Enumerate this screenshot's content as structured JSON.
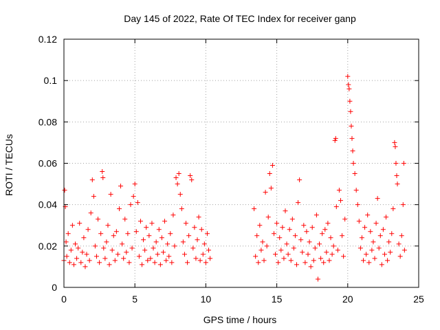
{
  "chart_data": {
    "type": "scatter",
    "title": "Day 145 of 2022, Rate Of TEC Index for receiver ganp",
    "xlabel": "GPS time / hours",
    "ylabel": "ROTI / TECUs",
    "xlim": [
      0,
      25
    ],
    "ylim": [
      0,
      0.12
    ],
    "grid": true,
    "marker": "+",
    "x_ticks": [
      0,
      5,
      10,
      15,
      20,
      25
    ],
    "x_tick_labels": [
      "0",
      "5",
      "10",
      "15",
      "20",
      "25"
    ],
    "y_ticks": [
      0,
      0.02,
      0.04,
      0.06,
      0.08,
      0.1,
      0.12
    ],
    "y_tick_labels": [
      "0",
      "0.02",
      "0.04",
      "0.06",
      "0.08",
      "0.1",
      "0.12"
    ],
    "series": [
      {
        "name": "ROTI",
        "color": "#ff0000",
        "points": [
          [
            0.0,
            0.013
          ],
          [
            0.05,
            0.047
          ],
          [
            0.1,
            0.039
          ],
          [
            0.15,
            0.022
          ],
          [
            0.2,
            0.015
          ],
          [
            0.3,
            0.026
          ],
          [
            0.4,
            0.012
          ],
          [
            0.5,
            0.018
          ],
          [
            0.6,
            0.03
          ],
          [
            0.7,
            0.011
          ],
          [
            0.8,
            0.021
          ],
          [
            0.9,
            0.014
          ],
          [
            1.0,
            0.019
          ],
          [
            1.1,
            0.031
          ],
          [
            1.2,
            0.012
          ],
          [
            1.3,
            0.017
          ],
          [
            1.4,
            0.024
          ],
          [
            1.5,
            0.01
          ],
          [
            1.6,
            0.016
          ],
          [
            1.7,
            0.028
          ],
          [
            1.8,
            0.013
          ],
          [
            1.9,
            0.036
          ],
          [
            2.0,
            0.052
          ],
          [
            2.1,
            0.044
          ],
          [
            2.2,
            0.02
          ],
          [
            2.3,
            0.015
          ],
          [
            2.4,
            0.033
          ],
          [
            2.5,
            0.012
          ],
          [
            2.6,
            0.026
          ],
          [
            2.7,
            0.056
          ],
          [
            2.75,
            0.053
          ],
          [
            2.8,
            0.019
          ],
          [
            2.9,
            0.014
          ],
          [
            3.0,
            0.022
          ],
          [
            3.1,
            0.03
          ],
          [
            3.2,
            0.011
          ],
          [
            3.3,
            0.045
          ],
          [
            3.4,
            0.018
          ],
          [
            3.5,
            0.025
          ],
          [
            3.6,
            0.013
          ],
          [
            3.7,
            0.027
          ],
          [
            3.8,
            0.016
          ],
          [
            3.9,
            0.038
          ],
          [
            4.0,
            0.049
          ],
          [
            4.1,
            0.021
          ],
          [
            4.2,
            0.014
          ],
          [
            4.3,
            0.033
          ],
          [
            4.4,
            0.017
          ],
          [
            4.5,
            0.026
          ],
          [
            4.6,
            0.012
          ],
          [
            4.7,
            0.04
          ],
          [
            4.8,
            0.019
          ],
          [
            4.9,
            0.044
          ],
          [
            5.0,
            0.05
          ],
          [
            5.1,
            0.027
          ],
          [
            5.2,
            0.041
          ],
          [
            5.3,
            0.015
          ],
          [
            5.4,
            0.032
          ],
          [
            5.5,
            0.011
          ],
          [
            5.6,
            0.023
          ],
          [
            5.7,
            0.018
          ],
          [
            5.8,
            0.029
          ],
          [
            5.9,
            0.013
          ],
          [
            6.0,
            0.025
          ],
          [
            6.1,
            0.014
          ],
          [
            6.2,
            0.031
          ],
          [
            6.3,
            0.019
          ],
          [
            6.4,
            0.012
          ],
          [
            6.5,
            0.022
          ],
          [
            6.6,
            0.016
          ],
          [
            6.7,
            0.028
          ],
          [
            6.8,
            0.011
          ],
          [
            6.9,
            0.024
          ],
          [
            7.0,
            0.017
          ],
          [
            7.1,
            0.032
          ],
          [
            7.2,
            0.013
          ],
          [
            7.3,
            0.021
          ],
          [
            7.4,
            0.015
          ],
          [
            7.5,
            0.026
          ],
          [
            7.6,
            0.012
          ],
          [
            7.7,
            0.035
          ],
          [
            7.8,
            0.02
          ],
          [
            7.9,
            0.053
          ],
          [
            8.0,
            0.05
          ],
          [
            8.1,
            0.055
          ],
          [
            8.2,
            0.045
          ],
          [
            8.3,
            0.038
          ],
          [
            8.4,
            0.022
          ],
          [
            8.5,
            0.016
          ],
          [
            8.6,
            0.031
          ],
          [
            8.7,
            0.012
          ],
          [
            8.8,
            0.025
          ],
          [
            8.9,
            0.054
          ],
          [
            9.0,
            0.052
          ],
          [
            9.1,
            0.019
          ],
          [
            9.2,
            0.029
          ],
          [
            9.3,
            0.014
          ],
          [
            9.4,
            0.023
          ],
          [
            9.5,
            0.034
          ],
          [
            9.6,
            0.013
          ],
          [
            9.7,
            0.028
          ],
          [
            9.8,
            0.016
          ],
          [
            9.9,
            0.021
          ],
          [
            10.0,
            0.012
          ],
          [
            10.1,
            0.026
          ],
          [
            10.2,
            0.018
          ],
          [
            10.3,
            0.014
          ],
          [
            13.4,
            0.038
          ],
          [
            13.5,
            0.015
          ],
          [
            13.6,
            0.025
          ],
          [
            13.7,
            0.012
          ],
          [
            13.8,
            0.03
          ],
          [
            13.9,
            0.018
          ],
          [
            14.0,
            0.022
          ],
          [
            14.1,
            0.013
          ],
          [
            14.2,
            0.046
          ],
          [
            14.3,
            0.02
          ],
          [
            14.4,
            0.034
          ],
          [
            14.5,
            0.055
          ],
          [
            14.6,
            0.048
          ],
          [
            14.7,
            0.059
          ],
          [
            14.8,
            0.026
          ],
          [
            14.9,
            0.016
          ],
          [
            15.0,
            0.031
          ],
          [
            15.1,
            0.012
          ],
          [
            15.2,
            0.024
          ],
          [
            15.3,
            0.018
          ],
          [
            15.4,
            0.029
          ],
          [
            15.5,
            0.014
          ],
          [
            15.6,
            0.037
          ],
          [
            15.7,
            0.021
          ],
          [
            15.8,
            0.016
          ],
          [
            15.9,
            0.028
          ],
          [
            16.0,
            0.013
          ],
          [
            16.1,
            0.033
          ],
          [
            16.2,
            0.019
          ],
          [
            16.3,
            0.025
          ],
          [
            16.4,
            0.011
          ],
          [
            16.5,
            0.041
          ],
          [
            16.6,
            0.052
          ],
          [
            16.7,
            0.023
          ],
          [
            16.8,
            0.017
          ],
          [
            16.9,
            0.03
          ],
          [
            17.0,
            0.012
          ],
          [
            17.1,
            0.027
          ],
          [
            17.2,
            0.016
          ],
          [
            17.3,
            0.022
          ],
          [
            17.4,
            0.01
          ],
          [
            17.5,
            0.029
          ],
          [
            17.6,
            0.013
          ],
          [
            17.7,
            0.019
          ],
          [
            17.8,
            0.035
          ],
          [
            17.9,
            0.004
          ],
          [
            18.0,
            0.021
          ],
          [
            18.1,
            0.014
          ],
          [
            18.2,
            0.026
          ],
          [
            18.3,
            0.012
          ],
          [
            18.4,
            0.028
          ],
          [
            18.5,
            0.017
          ],
          [
            18.6,
            0.031
          ],
          [
            18.7,
            0.013
          ],
          [
            18.8,
            0.024
          ],
          [
            18.9,
            0.016
          ],
          [
            19.0,
            0.02
          ],
          [
            19.1,
            0.071
          ],
          [
            19.15,
            0.072
          ],
          [
            19.2,
            0.039
          ],
          [
            19.3,
            0.018
          ],
          [
            19.4,
            0.047
          ],
          [
            19.5,
            0.042
          ],
          [
            19.6,
            0.025
          ],
          [
            19.7,
            0.015
          ],
          [
            19.8,
            0.033
          ],
          [
            20.0,
            0.102
          ],
          [
            20.05,
            0.098
          ],
          [
            20.1,
            0.096
          ],
          [
            20.15,
            0.09
          ],
          [
            20.2,
            0.085
          ],
          [
            20.25,
            0.078
          ],
          [
            20.3,
            0.072
          ],
          [
            20.35,
            0.066
          ],
          [
            20.4,
            0.06
          ],
          [
            20.5,
            0.055
          ],
          [
            20.6,
            0.047
          ],
          [
            20.7,
            0.04
          ],
          [
            20.8,
            0.032
          ],
          [
            20.9,
            0.019
          ],
          [
            21.0,
            0.024
          ],
          [
            21.1,
            0.013
          ],
          [
            21.2,
            0.029
          ],
          [
            21.3,
            0.016
          ],
          [
            21.4,
            0.035
          ],
          [
            21.5,
            0.012
          ],
          [
            21.6,
            0.027
          ],
          [
            21.7,
            0.018
          ],
          [
            21.8,
            0.022
          ],
          [
            21.9,
            0.014
          ],
          [
            22.0,
            0.031
          ],
          [
            22.1,
            0.043
          ],
          [
            22.2,
            0.019
          ],
          [
            22.3,
            0.025
          ],
          [
            22.4,
            0.011
          ],
          [
            22.5,
            0.028
          ],
          [
            22.6,
            0.016
          ],
          [
            22.7,
            0.034
          ],
          [
            22.8,
            0.013
          ],
          [
            22.9,
            0.022
          ],
          [
            23.0,
            0.017
          ],
          [
            23.1,
            0.026
          ],
          [
            23.2,
            0.038
          ],
          [
            23.3,
            0.07
          ],
          [
            23.35,
            0.068
          ],
          [
            23.4,
            0.06
          ],
          [
            23.45,
            0.054
          ],
          [
            23.5,
            0.05
          ],
          [
            23.6,
            0.021
          ],
          [
            23.7,
            0.015
          ],
          [
            23.8,
            0.025
          ],
          [
            23.9,
            0.04
          ],
          [
            23.95,
            0.06
          ],
          [
            24.0,
            0.018
          ]
        ]
      }
    ]
  }
}
